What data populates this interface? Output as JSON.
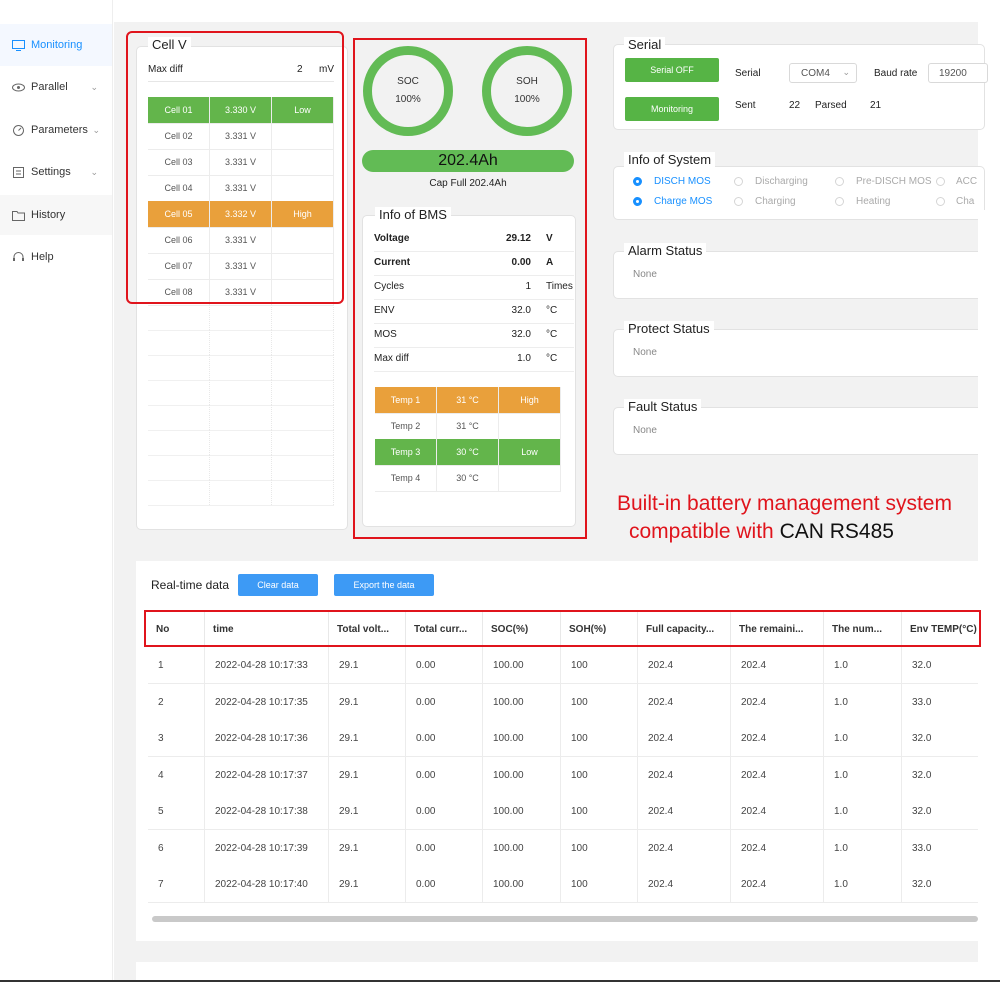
{
  "sidebar": {
    "items": [
      {
        "label": "Monitoring",
        "icon": "monitor-icon"
      },
      {
        "label": "Parallel",
        "icon": "eye-icon"
      },
      {
        "label": "Parameters",
        "icon": "gauge-icon"
      },
      {
        "label": "Settings",
        "icon": "settings-icon"
      },
      {
        "label": "History",
        "icon": "folder-icon"
      },
      {
        "label": "Help",
        "icon": "headset-icon"
      }
    ]
  },
  "cellv": {
    "title": "Cell V",
    "maxdiff_label": "Max diff",
    "maxdiff_value": "2",
    "maxdiff_unit": "mV",
    "rows": [
      {
        "name": "Cell 01",
        "voltage": "3.330 V",
        "flag": "Low",
        "state": "green"
      },
      {
        "name": "Cell 02",
        "voltage": "3.331 V",
        "flag": "",
        "state": ""
      },
      {
        "name": "Cell 03",
        "voltage": "3.331 V",
        "flag": "",
        "state": ""
      },
      {
        "name": "Cell 04",
        "voltage": "3.331 V",
        "flag": "",
        "state": ""
      },
      {
        "name": "Cell 05",
        "voltage": "3.332 V",
        "flag": "High",
        "state": "orange"
      },
      {
        "name": "Cell 06",
        "voltage": "3.331 V",
        "flag": "",
        "state": ""
      },
      {
        "name": "Cell 07",
        "voltage": "3.331 V",
        "flag": "",
        "state": ""
      },
      {
        "name": "Cell 08",
        "voltage": "3.331 V",
        "flag": "",
        "state": ""
      }
    ]
  },
  "gauges": {
    "soc_label": "SOC",
    "soc_value": "100%",
    "soh_label": "SOH",
    "soh_value": "100%",
    "capacity": "202.4Ah",
    "cap_full": "Cap Full  202.4Ah"
  },
  "bms": {
    "title": "Info of BMS",
    "rows": [
      {
        "label": "Voltage",
        "value": "29.12",
        "unit": "V"
      },
      {
        "label": "Current",
        "value": "0.00",
        "unit": "A"
      },
      {
        "label": "Cycles",
        "value": "1",
        "unit": "Times"
      },
      {
        "label": "ENV",
        "value": "32.0",
        "unit": "°C"
      },
      {
        "label": "MOS",
        "value": "32.0",
        "unit": "°C"
      },
      {
        "label": "Max diff",
        "value": "1.0",
        "unit": "°C"
      }
    ],
    "temps": [
      {
        "name": "Temp 1",
        "value": "31 °C",
        "flag": "High",
        "state": "orange"
      },
      {
        "name": "Temp 2",
        "value": "31 °C",
        "flag": "",
        "state": ""
      },
      {
        "name": "Temp 3",
        "value": "30 °C",
        "flag": "Low",
        "state": "green"
      },
      {
        "name": "Temp 4",
        "value": "30 °C",
        "flag": "",
        "state": ""
      }
    ]
  },
  "serial": {
    "title": "Serial",
    "serial_off_btn": "Serial OFF",
    "monitoring_btn": "Monitoring",
    "serial_label": "Serial",
    "port_value": "COM4",
    "baud_label": "Baud rate",
    "baud_value": "19200",
    "sent_label": "Sent",
    "sent_value": "22",
    "parsed_label": "Parsed",
    "parsed_value": "21"
  },
  "system": {
    "title": "Info of System",
    "row1": [
      {
        "label": "DISCH MOS",
        "on": true
      },
      {
        "label": "Discharging",
        "on": false
      },
      {
        "label": "Pre-DISCH MOS",
        "on": false
      },
      {
        "label": "ACC",
        "on": false
      }
    ],
    "row2": [
      {
        "label": "Charge MOS",
        "on": true
      },
      {
        "label": "Charging",
        "on": false
      },
      {
        "label": "Heating",
        "on": false
      },
      {
        "label": "Cha",
        "on": false
      }
    ]
  },
  "alarm": {
    "title": "Alarm Status",
    "value": "None"
  },
  "protect": {
    "title": "Protect Status",
    "value": "None"
  },
  "fault": {
    "title": "Fault Status",
    "value": "None"
  },
  "promo": {
    "line1": "Built-in battery management system",
    "line2_a": "compatible with ",
    "line2_b": "CAN RS485"
  },
  "realtime": {
    "title": "Real-time data",
    "clear_btn": "Clear data",
    "export_btn": "Export the data",
    "columns": [
      "No",
      "time",
      "Total volt...",
      "Total curr...",
      "SOC(%)",
      "SOH(%)",
      "Full capacity...",
      "The remaini...",
      "The num...",
      "Env TEMP(°C)"
    ],
    "rows": [
      [
        "1",
        "2022-04-28 10:17:33",
        "29.1",
        "0.00",
        "100.00",
        "100",
        "202.4",
        "202.4",
        "1.0",
        "32.0"
      ],
      [
        "2",
        "2022-04-28 10:17:35",
        "29.1",
        "0.00",
        "100.00",
        "100",
        "202.4",
        "202.4",
        "1.0",
        "33.0"
      ],
      [
        "3",
        "2022-04-28 10:17:36",
        "29.1",
        "0.00",
        "100.00",
        "100",
        "202.4",
        "202.4",
        "1.0",
        "32.0"
      ],
      [
        "4",
        "2022-04-28 10:17:37",
        "29.1",
        "0.00",
        "100.00",
        "100",
        "202.4",
        "202.4",
        "1.0",
        "32.0"
      ],
      [
        "5",
        "2022-04-28 10:17:38",
        "29.1",
        "0.00",
        "100.00",
        "100",
        "202.4",
        "202.4",
        "1.0",
        "32.0"
      ],
      [
        "6",
        "2022-04-28 10:17:39",
        "29.1",
        "0.00",
        "100.00",
        "100",
        "202.4",
        "202.4",
        "1.0",
        "33.0"
      ],
      [
        "7",
        "2022-04-28 10:17:40",
        "29.1",
        "0.00",
        "100.00",
        "100",
        "202.4",
        "202.4",
        "1.0",
        "32.0"
      ]
    ]
  },
  "colors": {
    "accent": "#1890ff",
    "ok_green": "#63b54b",
    "warn_orange": "#e9a03b",
    "highlight_red": "#e0141c"
  }
}
